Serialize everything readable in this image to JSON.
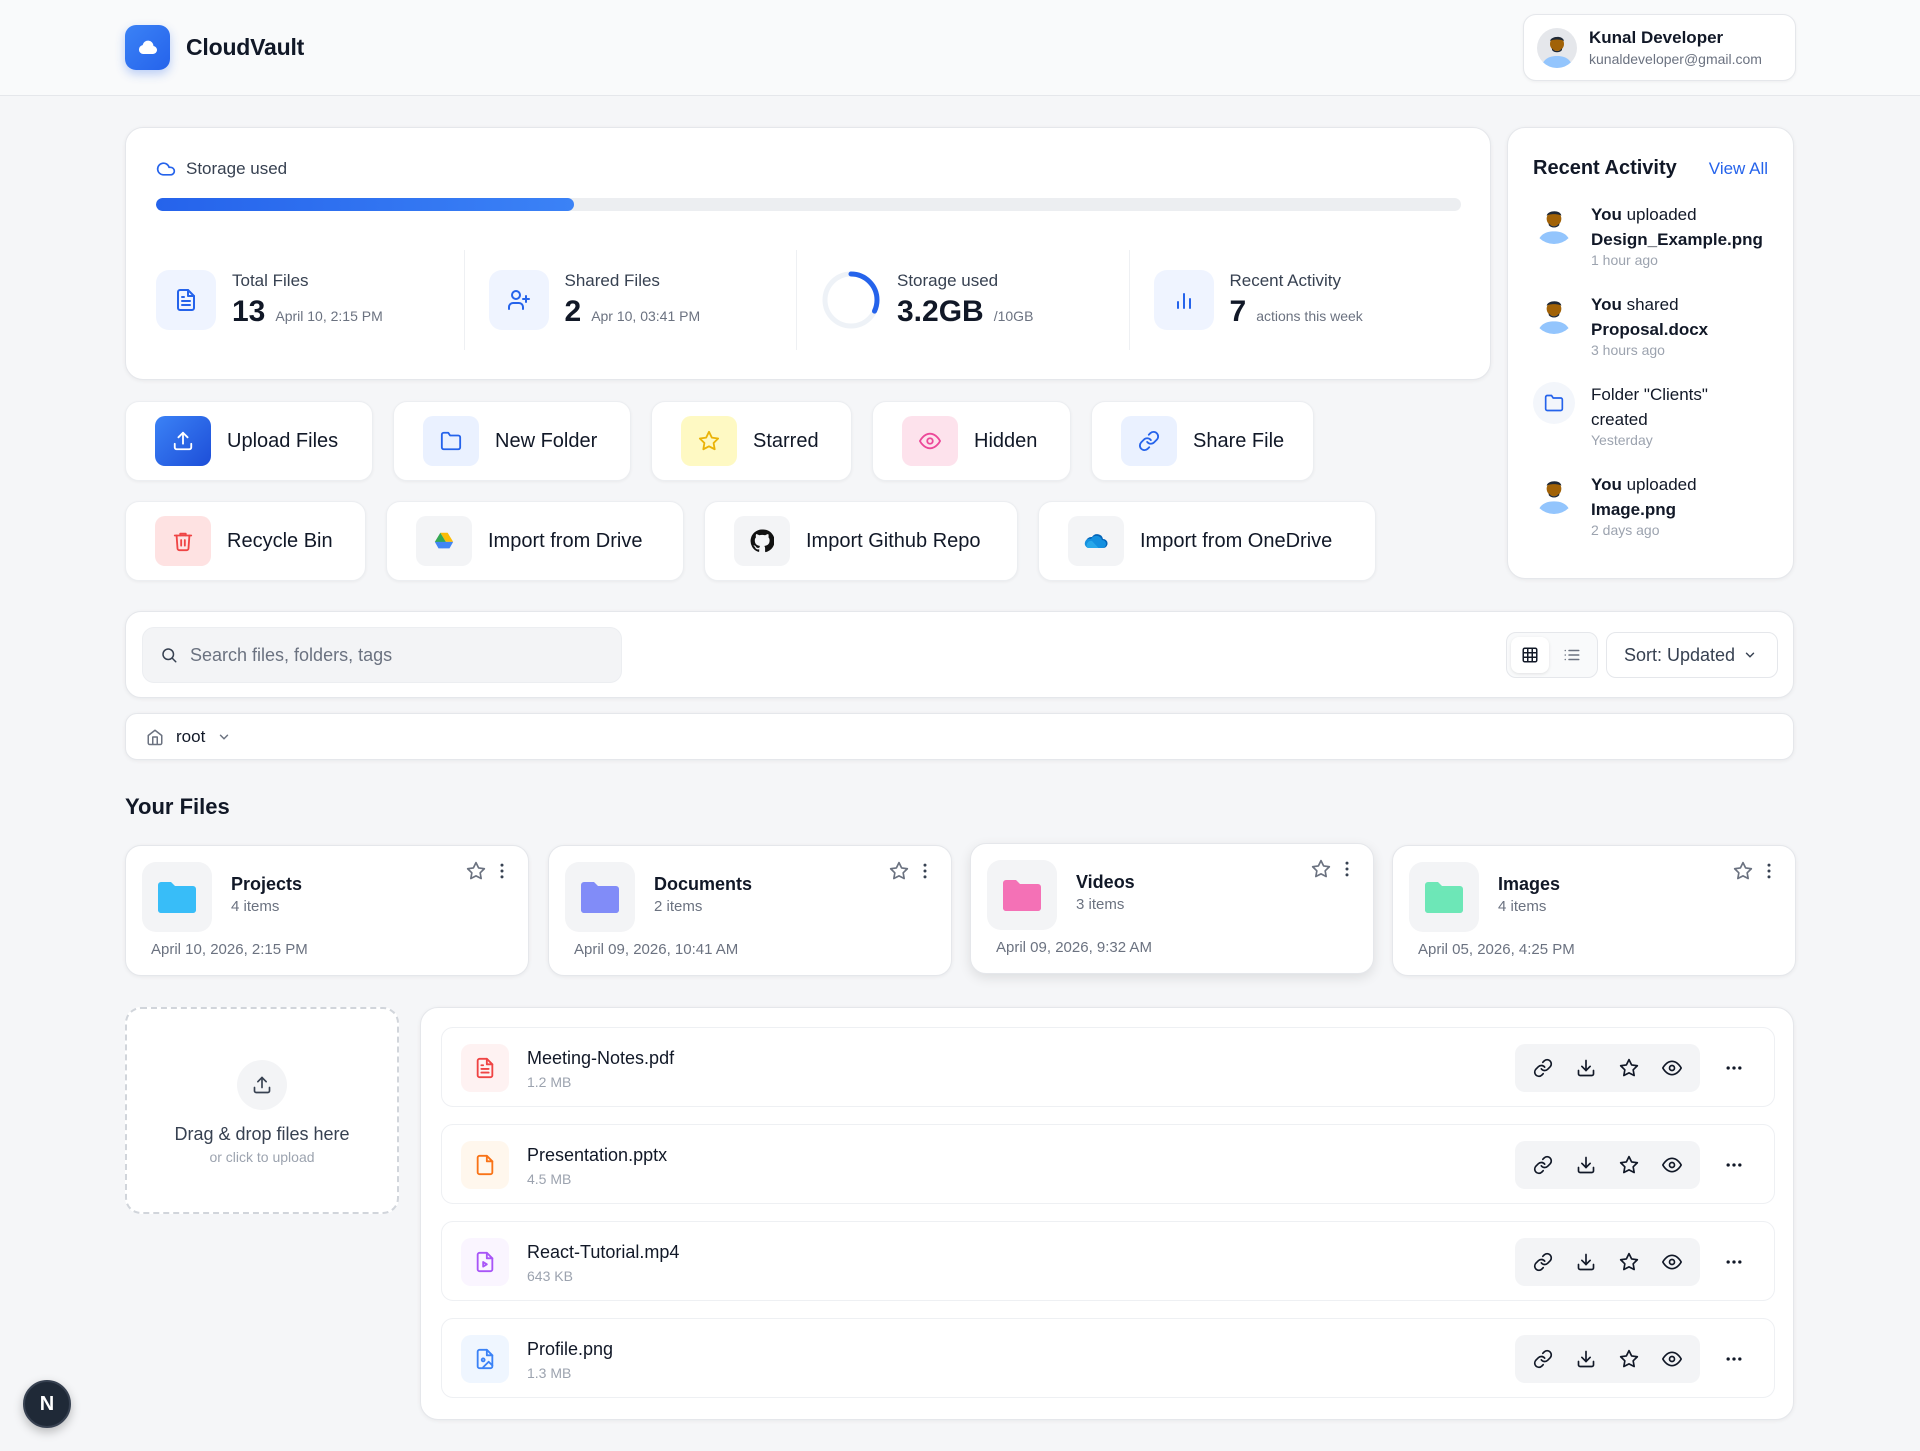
{
  "app": {
    "name": "CloudVault"
  },
  "user": {
    "name": "Kunal Developer",
    "email": "kunaldeveloper@gmail.com"
  },
  "storage": {
    "title": "Storage used",
    "used_fraction": 0.32,
    "stats": [
      {
        "label": "Total Files",
        "value": "13",
        "sub": "April 10, 2:15 PM",
        "icon": "file-icon"
      },
      {
        "label": "Shared Files",
        "value": "2",
        "sub": "Apr 10, 03:41 PM",
        "icon": "user-plus-icon"
      },
      {
        "label": "Storage used",
        "value": "3.2GB",
        "sub": "/10GB",
        "icon": "progress-ring-icon"
      },
      {
        "label": "Recent Activity",
        "value": "7",
        "sub": "actions this week",
        "icon": "bar-chart-icon"
      }
    ]
  },
  "actions": {
    "upload": "Upload Files",
    "new_folder": "New Folder",
    "starred": "Starred",
    "hidden": "Hidden",
    "share": "Share File",
    "recycle": "Recycle Bin",
    "import_drive": "Import from Drive",
    "import_github": "Import Github Repo",
    "import_onedrive": "Import from OneDrive"
  },
  "activity": {
    "title": "Recent Activity",
    "view_all": "View All",
    "items": [
      {
        "actor": "You",
        "verb": "uploaded",
        "object": "Design_Example.png",
        "time": "1 hour ago"
      },
      {
        "actor": "You",
        "verb": "shared",
        "object": "Proposal.docx",
        "time": "3 hours ago"
      },
      {
        "line1": "Folder \"Clients\"",
        "line2": "created",
        "time": "Yesterday"
      },
      {
        "actor": "You",
        "verb": "uploaded",
        "object": "Image.png",
        "time": "2 days ago"
      }
    ]
  },
  "search": {
    "placeholder": "Search files, folders, tags",
    "value": ""
  },
  "sort": {
    "label": "Sort: Updated"
  },
  "breadcrumb": {
    "root": "root"
  },
  "files_section": {
    "title": "Your Files"
  },
  "folders": [
    {
      "name": "Projects",
      "count": "4 items",
      "date": "April 10, 2026, 2:15 PM",
      "color": "#38bdf8"
    },
    {
      "name": "Documents",
      "count": "2 items",
      "date": "April 09, 2026, 10:41 AM",
      "color": "#818cf8"
    },
    {
      "name": "Videos",
      "count": "3 items",
      "date": "April 09, 2026, 9:32 AM",
      "color": "#f472b6"
    },
    {
      "name": "Images",
      "count": "4 items",
      "date": "April 05, 2026, 4:25 PM",
      "color": "#6ee7b7"
    }
  ],
  "dropzone": {
    "title": "Drag & drop files here",
    "sub": "or click to upload"
  },
  "files": [
    {
      "name": "Meeting-Notes.pdf",
      "size": "1.2 MB",
      "icon": "pdf-icon",
      "color": "#ef4444",
      "bg": "#fef2f2"
    },
    {
      "name": "Presentation.pptx",
      "size": "4.5 MB",
      "icon": "pptx-icon",
      "color": "#f97316",
      "bg": "#fff7ed"
    },
    {
      "name": "React-Tutorial.mp4",
      "size": "643 KB",
      "icon": "video-file-icon",
      "color": "#a855f7",
      "bg": "#faf5ff"
    },
    {
      "name": "Profile.png",
      "size": "1.3 MB",
      "icon": "image-file-icon",
      "color": "#3b82f6",
      "bg": "#eff6ff"
    }
  ],
  "badge": {
    "letter": "N"
  },
  "colors": {
    "accent": "#2563eb",
    "background": "#f5f6f8"
  }
}
